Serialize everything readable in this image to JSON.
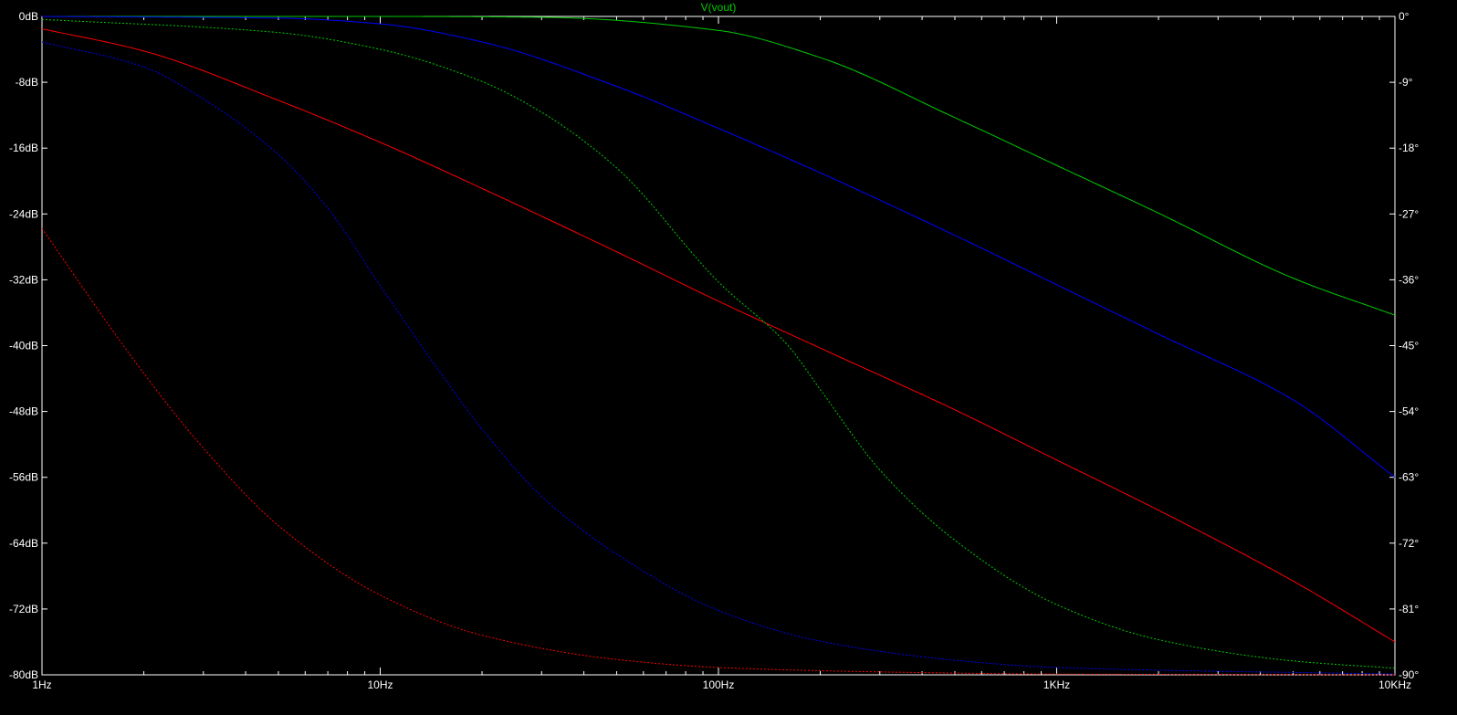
{
  "chart_data": {
    "type": "line",
    "title": "V(vout)",
    "x_scale": "log",
    "xlim_hz": [
      1,
      10000
    ],
    "x_ticks": [
      {
        "value": 1,
        "label": "1Hz"
      },
      {
        "value": 10,
        "label": "10Hz"
      },
      {
        "value": 100,
        "label": "100Hz"
      },
      {
        "value": 1000,
        "label": "1KHz"
      },
      {
        "value": 10000,
        "label": "10KHz"
      }
    ],
    "ylim_left_db": [
      -80,
      0
    ],
    "y_left_ticks": [
      {
        "value": 0,
        "label": "0dB"
      },
      {
        "value": -8,
        "label": "-8dB"
      },
      {
        "value": -16,
        "label": "-16dB"
      },
      {
        "value": -24,
        "label": "-24dB"
      },
      {
        "value": -32,
        "label": "-32dB"
      },
      {
        "value": -40,
        "label": "-40dB"
      },
      {
        "value": -48,
        "label": "-48dB"
      },
      {
        "value": -56,
        "label": "-56dB"
      },
      {
        "value": -64,
        "label": "-64dB"
      },
      {
        "value": -72,
        "label": "-72dB"
      },
      {
        "value": -80,
        "label": "-80dB"
      }
    ],
    "ylim_right_deg": [
      -90,
      0
    ],
    "y_right_ticks": [
      {
        "value": 0,
        "label": "0°"
      },
      {
        "value": -9,
        "label": "-9°"
      },
      {
        "value": -18,
        "label": "-18°"
      },
      {
        "value": -27,
        "label": "-27°"
      },
      {
        "value": -36,
        "label": "-36°"
      },
      {
        "value": -45,
        "label": "-45°"
      },
      {
        "value": -54,
        "label": "-54°"
      },
      {
        "value": -63,
        "label": "-63°"
      },
      {
        "value": -72,
        "label": "-72°"
      },
      {
        "value": -81,
        "label": "-81°"
      },
      {
        "value": -90,
        "label": "-90°"
      }
    ],
    "grid": false,
    "series": [
      {
        "id": "green-magnitude",
        "color": "#00cc00",
        "dashed": false,
        "axis": "left",
        "x": [
          1,
          10,
          30,
          100,
          200,
          500,
          1000,
          2000,
          5000,
          10000
        ],
        "y": [
          0,
          0,
          -0.1,
          -1.7,
          -5.0,
          -12.3,
          -18.1,
          -23.9,
          -31.8,
          -36.3
        ]
      },
      {
        "id": "blue-magnitude",
        "color": "#0000ff",
        "dashed": false,
        "axis": "left",
        "x": [
          1,
          5,
          10,
          20,
          50,
          100,
          200,
          500,
          1000,
          2000,
          5000,
          10000
        ],
        "y": [
          0,
          -0.2,
          -0.9,
          -3.1,
          -8.5,
          -13.6,
          -19.0,
          -26.6,
          -32.6,
          -38.6,
          -46.6,
          -56.0
        ]
      },
      {
        "id": "red-magnitude",
        "color": "#ff0000",
        "dashed": false,
        "axis": "left",
        "x": [
          1,
          2,
          5,
          10,
          20,
          50,
          100,
          200,
          500,
          1000,
          2000,
          5000,
          10000
        ],
        "y": [
          -1.5,
          -4.2,
          -10.2,
          -15.3,
          -20.9,
          -28.6,
          -34.6,
          -40.3,
          -47.8,
          -53.9,
          -60.0,
          -68.6,
          -76.0
        ]
      },
      {
        "id": "green-phase",
        "color": "#00cc00",
        "dashed": true,
        "axis": "right",
        "x": [
          1,
          5,
          10,
          20,
          30,
          50,
          100,
          160,
          200,
          300,
          500,
          1000,
          2000,
          5000,
          10000
        ],
        "y": [
          -0.4,
          -2.2,
          -4.5,
          -8.9,
          -13.1,
          -20.7,
          -36.3,
          -44.9,
          -51.0,
          -62.0,
          -71.6,
          -80.4,
          -85.2,
          -88.1,
          -89.1
        ]
      },
      {
        "id": "blue-phase",
        "color": "#0000ff",
        "dashed": true,
        "axis": "right",
        "x": [
          1,
          2,
          3,
          5,
          7,
          10,
          15,
          20,
          30,
          50,
          100,
          200,
          500,
          1000,
          10000
        ],
        "y": [
          -3.5,
          -6.9,
          -11.3,
          -18.9,
          -26.2,
          -36.8,
          -48.6,
          -56.4,
          -65.6,
          -73.5,
          -81.2,
          -85.4,
          -88.0,
          -89.0,
          -89.9
        ]
      },
      {
        "id": "red-phase",
        "color": "#ff0000",
        "dashed": true,
        "axis": "right",
        "x": [
          1,
          2,
          3,
          5,
          10,
          20,
          50,
          100,
          300,
          1000,
          10000
        ],
        "y": [
          -29.0,
          -48.8,
          -59.0,
          -69.6,
          -79.1,
          -84.6,
          -87.9,
          -89.0,
          -89.6,
          -89.9,
          -90.0
        ]
      }
    ]
  }
}
